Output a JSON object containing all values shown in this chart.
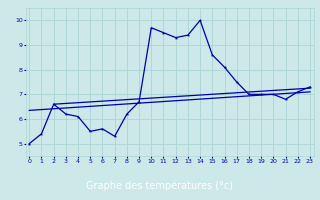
{
  "xlabel": "Graphe des températures (°c)",
  "background_color": "#cce8e8",
  "line_color": "#0000aa",
  "grid_color": "#aad4d4",
  "footer_color": "#000080",
  "footer_text_color": "#ffffff",
  "x_ticks": [
    0,
    1,
    2,
    3,
    4,
    5,
    6,
    7,
    8,
    9,
    10,
    11,
    12,
    13,
    14,
    15,
    16,
    17,
    18,
    19,
    20,
    21,
    22,
    23
  ],
  "ylim": [
    4.5,
    10.5
  ],
  "xlim": [
    -0.3,
    23.3
  ],
  "yticks": [
    5,
    6,
    7,
    8,
    9,
    10
  ],
  "line1": {
    "x": [
      0,
      1,
      2,
      3,
      4,
      5,
      6,
      7,
      8,
      9,
      10,
      11,
      12,
      13,
      14,
      15,
      16,
      17,
      18,
      19,
      20,
      21,
      22,
      23
    ],
    "y": [
      5.0,
      5.4,
      6.6,
      6.2,
      6.1,
      5.5,
      5.6,
      5.3,
      6.2,
      6.7,
      9.7,
      9.5,
      9.3,
      9.4,
      10.0,
      8.6,
      8.1,
      7.5,
      7.0,
      7.0,
      7.0,
      6.8,
      7.1,
      7.3
    ]
  },
  "line2": {
    "x": [
      2,
      23
    ],
    "y": [
      6.6,
      7.25
    ]
  },
  "line3": {
    "x": [
      0,
      23
    ],
    "y": [
      6.35,
      7.1
    ]
  }
}
